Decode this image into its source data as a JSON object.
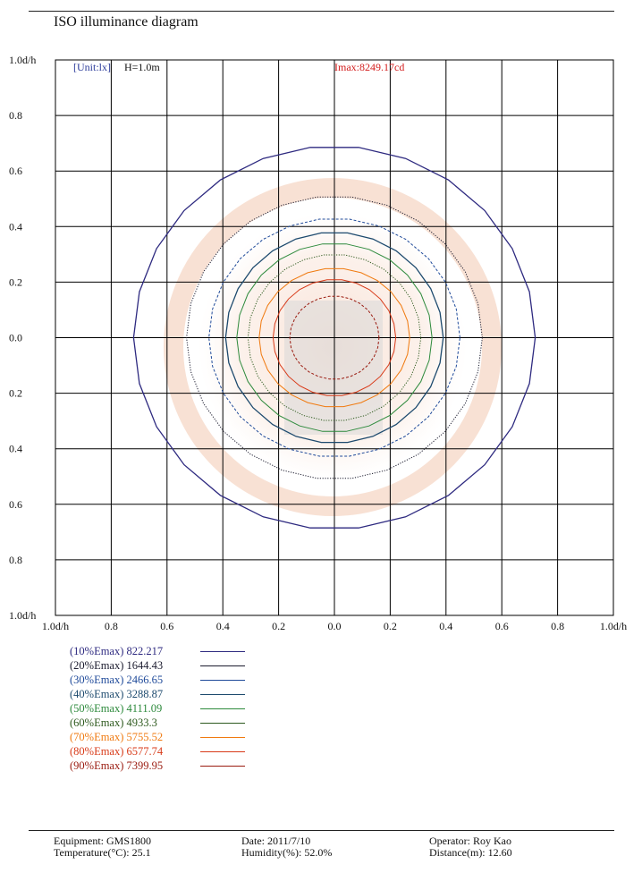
{
  "header": {
    "title": "ISO illuminance diagram"
  },
  "chart_data": {
    "type": "contour",
    "title": "ISO illuminance diagram",
    "annotations": {
      "unit": "[Unit:lx]",
      "height": "H=1.0m",
      "imax": "Imax:8249.17cd"
    },
    "y_tick_labels": [
      "1.0d/h",
      "0.8",
      "0.6",
      "0.4",
      "0.2",
      "0.0",
      "0.2",
      "0.4",
      "0.6",
      "0.8",
      "1.0d/h"
    ],
    "x_tick_labels": [
      "1.0d/h",
      "0.8",
      "0.6",
      "0.4",
      "0.2",
      "0.0",
      "0.2",
      "0.4",
      "0.6",
      "0.8",
      "1.0d/h"
    ],
    "xlim": [
      -1.0,
      1.0
    ],
    "ylim": [
      -1.0,
      1.0
    ],
    "grid": true,
    "series": [
      {
        "label": "(10%Emax)",
        "value": "822.217",
        "radius_x": 0.72,
        "radius_y": 0.69,
        "color": "#2e2a80",
        "dash": "solid",
        "stroke_w": 1.3
      },
      {
        "label": "(20%Emax)",
        "value": "1644.43",
        "radius_x": 0.53,
        "radius_y": 0.51,
        "color": "#1b1b2e",
        "dash": "dotted",
        "stroke_w": 1
      },
      {
        "label": "(30%Emax)",
        "value": "2466.65",
        "radius_x": 0.45,
        "radius_y": 0.43,
        "color": "#1f4a9a",
        "dash": "dashed",
        "stroke_w": 1
      },
      {
        "label": "(40%Emax)",
        "value": "3288.87",
        "radius_x": 0.39,
        "radius_y": 0.38,
        "color": "#1d4a6e",
        "dash": "solid",
        "stroke_w": 1.3
      },
      {
        "label": "(50%Emax)",
        "value": "4111.09",
        "radius_x": 0.35,
        "radius_y": 0.34,
        "color": "#2d8a3c",
        "dash": "solid",
        "stroke_w": 1
      },
      {
        "label": "(60%Emax)",
        "value": "4933.3",
        "radius_x": 0.31,
        "radius_y": 0.3,
        "color": "#2e5a1e",
        "dash": "dotted",
        "stroke_w": 1
      },
      {
        "label": "(70%Emax)",
        "value": "5755.52",
        "radius_x": 0.27,
        "radius_y": 0.25,
        "color": "#f07a10",
        "dash": "solid",
        "stroke_w": 1
      },
      {
        "label": "(80%Emax)",
        "value": "6577.74",
        "radius_x": 0.22,
        "radius_y": 0.21,
        "color": "#d83a18",
        "dash": "solid",
        "stroke_w": 1
      },
      {
        "label": "(90%Emax)",
        "value": "7399.95",
        "radius_x": 0.16,
        "radius_y": 0.15,
        "color": "#9a1b10",
        "dash": "dashed",
        "stroke_w": 1
      }
    ]
  },
  "footer": {
    "equipment": "Equipment: GMS1800",
    "temperature": "Temperature(°C): 25.1",
    "date": "Date: 2011/7/10",
    "humidity": "Humidity(%): 52.0%",
    "operator": "Operator: Roy Kao",
    "distance": "Distance(m): 12.60"
  }
}
